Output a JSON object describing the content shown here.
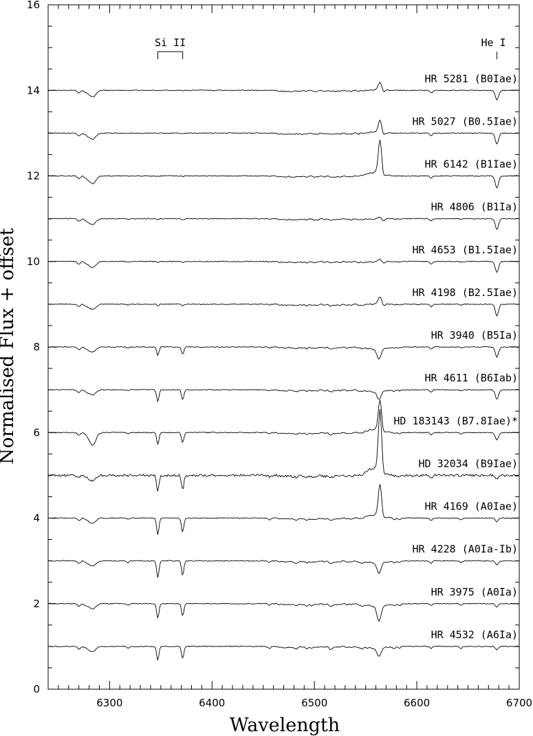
{
  "chart_data": {
    "type": "line",
    "title": "",
    "xlabel": "Wavelength",
    "ylabel": "Normalised Flux + offset",
    "xlim": [
      6240,
      6700
    ],
    "ylim": [
      0,
      16
    ],
    "x_ticks": [
      "6300",
      "6400",
      "6500",
      "6600",
      "6700"
    ],
    "y_ticks": [
      "0",
      "2",
      "4",
      "6",
      "8",
      "10",
      "12",
      "14",
      "16"
    ],
    "line_ids": [
      {
        "label": "Si II",
        "wavelengths": [
          6347.1,
          6371.4
        ]
      },
      {
        "label": "He I",
        "wavelengths": [
          6678.2
        ]
      }
    ],
    "series": [
      {
        "name": "HR 5281 (B0Iae)",
        "offset": 14,
        "halpha": 0.18,
        "hei": -0.22,
        "siii": -0.01,
        "c_ii": -0.16
      },
      {
        "name": "HR 5027 (B0.5Iae)",
        "offset": 13,
        "halpha": 0.28,
        "hei": -0.25,
        "siii": -0.01,
        "c_ii": -0.14
      },
      {
        "name": "HR 6142 (B1Iae)",
        "offset": 12,
        "halpha": 0.78,
        "hei": -0.28,
        "siii": -0.01,
        "c_ii": -0.18
      },
      {
        "name": "HR 4806 (B1Ia)",
        "offset": 11,
        "halpha": 0.03,
        "hei": -0.25,
        "siii": -0.01,
        "c_ii": -0.14
      },
      {
        "name": "HR 4653 (B1.5Iae)",
        "offset": 10,
        "halpha": 0.05,
        "hei": -0.25,
        "siii": -0.01,
        "c_ii": -0.14
      },
      {
        "name": "HR 4198 (B2.5Iae)",
        "offset": 9,
        "halpha": 0.16,
        "hei": -0.25,
        "siii": -0.02,
        "c_ii": -0.12
      },
      {
        "name": "HR 3940 (B5Ia)",
        "offset": 8,
        "halpha": -0.25,
        "hei": -0.22,
        "siii": -0.18,
        "c_ii": -0.12
      },
      {
        "name": "HR 4611 (B6Iab)",
        "offset": 7,
        "halpha": -0.2,
        "hei": -0.2,
        "siii": -0.25,
        "c_ii": -0.12
      },
      {
        "name": "HD 183143 (B7.8Iae)*",
        "offset": 6,
        "halpha": 0.7,
        "hei": -0.15,
        "siii": -0.25,
        "c_ii": -0.3
      },
      {
        "name": "HD 32034 (B9Iae)",
        "offset": 5,
        "halpha": 1.4,
        "hei": -0.05,
        "siii": -0.35,
        "c_ii": -0.12
      },
      {
        "name": "HR 4169 (A0Iae)",
        "offset": 4,
        "halpha": 0.72,
        "hei": -0.05,
        "siii": -0.35,
        "c_ii": -0.12
      },
      {
        "name": "HR 4228 (A0Ia-Ib)",
        "offset": 3,
        "halpha": -0.25,
        "hei": -0.06,
        "siii": -0.35,
        "c_ii": -0.12
      },
      {
        "name": "HR 3975 (A0Ia)",
        "offset": 2,
        "halpha": -0.35,
        "hei": -0.04,
        "siii": -0.3,
        "c_ii": -0.12
      },
      {
        "name": "HR 4532 (A6Ia)",
        "offset": 1,
        "halpha": -0.2,
        "hei": -0.03,
        "siii": -0.28,
        "c_ii": -0.12
      }
    ]
  }
}
